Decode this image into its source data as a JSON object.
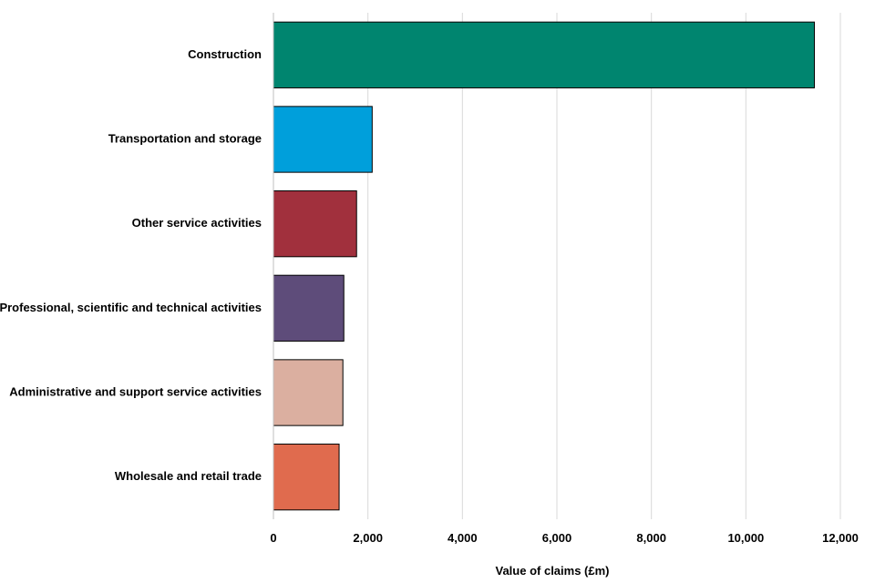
{
  "chart_data": {
    "type": "bar",
    "orientation": "horizontal",
    "title": "",
    "xlabel": "Value of claims (£m)",
    "ylabel": "",
    "xlim": [
      0,
      12000
    ],
    "x_ticks": [
      0,
      2000,
      4000,
      6000,
      8000,
      10000,
      12000
    ],
    "x_tick_labels": [
      "0",
      "2,000",
      "4,000",
      "6,000",
      "8,000",
      "10,000",
      "12,000"
    ],
    "grid": true,
    "legend": "none",
    "categories": [
      "Construction",
      "Transportation and storage",
      "Other service activities",
      "Professional, scientific and technical activities",
      "Administrative and support service activities",
      "Wholesale and retail trade"
    ],
    "values": [
      11450,
      2090,
      1760,
      1490,
      1470,
      1390
    ],
    "colors": [
      "#00856F",
      "#009FDB",
      "#A1303D",
      "#5E4C7A",
      "#DBAFA0",
      "#E06B4E"
    ]
  }
}
